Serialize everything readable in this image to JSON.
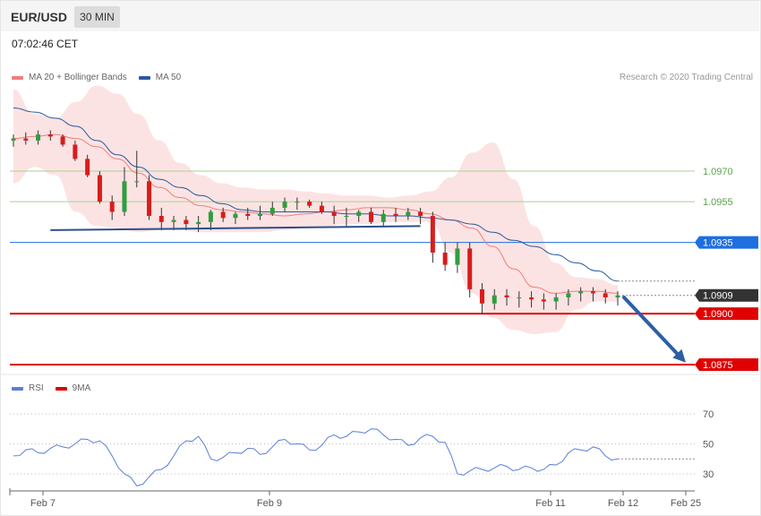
{
  "header": {
    "symbol": "EUR/USD",
    "timeframe": "30 MIN",
    "timestamp": "07:02:46 CET"
  },
  "legend_main": [
    {
      "label": "MA 20 + Bollinger Bands",
      "color": "#f47b7b"
    },
    {
      "label": "MA 50",
      "color": "#2b5aa0"
    }
  ],
  "credit": "Research © 2020 Trading Central",
  "legend_rsi": [
    {
      "label": "RSI",
      "color": "#5b7fd6"
    },
    {
      "label": "9MA",
      "color": "#e00000"
    }
  ],
  "colors": {
    "up": "#2e9e3f",
    "down": "#d91c1c",
    "resistance": "#a6d394",
    "support": "#e00000",
    "pivot": "#1e6fe0",
    "last": "#333333",
    "ma20": "#f47b7b",
    "ma50": "#2b5aa0",
    "band": "#fcdede",
    "arrow": "#2d5fa6",
    "rsi": "#5b7fd6"
  },
  "chart_data": [
    {
      "type": "candlestick",
      "title": "EUR/USD",
      "timeframe": "30 MIN",
      "ylim": [
        1.0864,
        1.1026
      ],
      "x_ticks": [
        "Feb 7",
        "Feb 9",
        "Feb 11",
        "Feb 12",
        "Feb 25"
      ],
      "levels": [
        {
          "label": "1.0970",
          "value": 1.097,
          "kind": "resistance"
        },
        {
          "label": "1.0955",
          "value": 1.0955,
          "kind": "resistance"
        },
        {
          "label": "1.0935",
          "value": 1.0935,
          "kind": "pivot"
        },
        {
          "label": "1.0909",
          "value": 1.0909,
          "kind": "last"
        },
        {
          "label": "1.0900",
          "value": 1.09,
          "kind": "support"
        },
        {
          "label": "1.0875",
          "value": 1.0875,
          "kind": "support"
        }
      ],
      "series": [
        {
          "name": "MA 20 + Bollinger Bands",
          "values": [
            1.0986,
            1.0987,
            1.0988,
            1.0986,
            1.0982,
            1.0976,
            1.0969,
            1.0962,
            1.0957,
            1.0953,
            1.0951,
            1.095,
            1.0949,
            1.0948,
            1.0949,
            1.095,
            1.0951,
            1.0952,
            1.0952,
            1.0951,
            1.0949,
            1.0946,
            1.0942,
            1.0933,
            1.0922,
            1.0913,
            1.091,
            1.0911,
            1.0911,
            1.091
          ],
          "upper": [
            1.101,
            1.0998,
            1.0996,
            1.1004,
            1.1012,
            1.1008,
            1.0998,
            1.0985,
            1.0974,
            1.0968,
            1.0964,
            1.0962,
            1.0961,
            1.0961,
            1.096,
            1.0959,
            1.0958,
            1.0958,
            1.0957,
            1.0958,
            1.096,
            1.0967,
            1.0979,
            1.0984,
            1.0966,
            1.0943,
            1.0925,
            1.0918,
            1.0917,
            1.0914
          ],
          "lower": [
            1.0964,
            1.0972,
            1.0968,
            1.095,
            1.0943,
            1.0942,
            1.094,
            1.0941,
            1.0941,
            1.094,
            1.094,
            1.094,
            1.094,
            1.0941,
            1.0942,
            1.0943,
            1.0944,
            1.0944,
            1.0945,
            1.0945,
            1.0945,
            1.093,
            1.091,
            1.0898,
            1.0892,
            1.089,
            1.0891,
            1.0902,
            1.0906,
            1.0906
          ]
        },
        {
          "name": "MA 50",
          "values": [
            1.1001,
            1.0999,
            1.0996,
            1.0992,
            1.0985,
            1.0978,
            1.0972,
            1.0966,
            1.0962,
            1.0958,
            1.0954,
            1.0951,
            1.095,
            1.095,
            1.095,
            1.095,
            1.0949,
            1.0949,
            1.0948,
            1.0948,
            1.0947,
            1.0946,
            1.0944,
            1.094,
            1.0936,
            1.0933,
            1.0929,
            1.0925,
            1.0921,
            1.0916
          ]
        }
      ],
      "candles": {
        "open": [
          1.0985,
          1.0986,
          1.0985,
          1.0988,
          1.0987,
          1.0983,
          1.0976,
          1.0968,
          1.0955,
          1.095,
          1.0965,
          1.0965,
          1.0948,
          1.0945,
          1.0946,
          1.0944,
          1.0945,
          1.095,
          1.0947,
          1.0949,
          1.0948,
          1.0949,
          1.0952,
          1.0955,
          1.0955,
          1.0953,
          1.095,
          1.0948,
          1.0948,
          1.095,
          1.0945,
          1.0949,
          1.0948,
          1.095,
          1.0948,
          1.093,
          1.0924,
          1.0932,
          1.0912,
          1.0905,
          1.0909,
          1.0908,
          1.0908,
          1.0907,
          1.0906,
          1.0908,
          1.091,
          1.0911,
          1.091,
          1.0908
        ],
        "high": [
          1.0988,
          1.0989,
          1.099,
          1.099,
          1.0988,
          1.0985,
          1.0978,
          1.097,
          1.0958,
          1.0972,
          1.098,
          1.0968,
          1.0952,
          1.0948,
          1.0948,
          1.0948,
          1.0951,
          1.0952,
          1.095,
          1.0952,
          1.0953,
          1.0955,
          1.0957,
          1.0957,
          1.0956,
          1.0955,
          1.0953,
          1.0952,
          1.0951,
          1.0952,
          1.0951,
          1.0952,
          1.0952,
          1.0952,
          1.095,
          1.0935,
          1.0935,
          1.0935,
          1.0915,
          1.0912,
          1.0912,
          1.0911,
          1.0911,
          1.091,
          1.091,
          1.0912,
          1.0913,
          1.0913,
          1.0912,
          1.0911
        ],
        "low": [
          1.0982,
          1.0983,
          1.0983,
          1.0985,
          1.0982,
          1.0975,
          1.0967,
          1.0954,
          1.0946,
          1.0948,
          1.0962,
          1.0946,
          1.0941,
          1.0941,
          1.0941,
          1.094,
          1.0941,
          1.0945,
          1.0944,
          1.0946,
          1.0946,
          1.0948,
          1.095,
          1.0951,
          1.0952,
          1.0949,
          1.0944,
          1.0943,
          1.0945,
          1.0944,
          1.0943,
          1.0945,
          1.0946,
          1.0944,
          1.0925,
          1.0921,
          1.092,
          1.0908,
          1.09,
          1.0902,
          1.0904,
          1.0903,
          1.0903,
          1.0902,
          1.0902,
          1.0904,
          1.0906,
          1.0906,
          1.0905,
          1.0904
        ],
        "close": [
          1.0986,
          1.0985,
          1.0988,
          1.0987,
          1.0983,
          1.0976,
          1.0968,
          1.0955,
          1.095,
          1.0965,
          1.0965,
          1.0948,
          1.0945,
          1.0946,
          1.0944,
          1.0945,
          1.095,
          1.0947,
          1.0949,
          1.0948,
          1.0949,
          1.0952,
          1.0955,
          1.0955,
          1.0953,
          1.095,
          1.0948,
          1.0948,
          1.095,
          1.0945,
          1.0949,
          1.0948,
          1.095,
          1.0948,
          1.093,
          1.0924,
          1.0932,
          1.0912,
          1.0905,
          1.0909,
          1.0908,
          1.0908,
          1.0907,
          1.0906,
          1.0908,
          1.091,
          1.0911,
          1.091,
          1.0908,
          1.0909
        ]
      },
      "annotations": [
        {
          "kind": "trendline",
          "from": [
            3,
            1.0941
          ],
          "to": [
            33,
            1.0943
          ]
        },
        {
          "kind": "arrow",
          "from": [
            50,
            1.0908
          ],
          "to": [
            58,
            1.0876
          ]
        }
      ]
    },
    {
      "type": "line",
      "title": "RSI",
      "ylim": [
        15,
        85
      ],
      "y_ticks": [
        30,
        50,
        70
      ],
      "series": [
        {
          "name": "RSI",
          "values": [
            42,
            46,
            44,
            47,
            48,
            50,
            53,
            52,
            42,
            30,
            22,
            28,
            33,
            42,
            52,
            55,
            40,
            41,
            44,
            47,
            43,
            48,
            53,
            50,
            46,
            49,
            56,
            55,
            58,
            60,
            56,
            53,
            49,
            54,
            55,
            51,
            30,
            32,
            33,
            34,
            35,
            33,
            34,
            33,
            36,
            44,
            46,
            48,
            42,
            40
          ]
        }
      ]
    }
  ]
}
